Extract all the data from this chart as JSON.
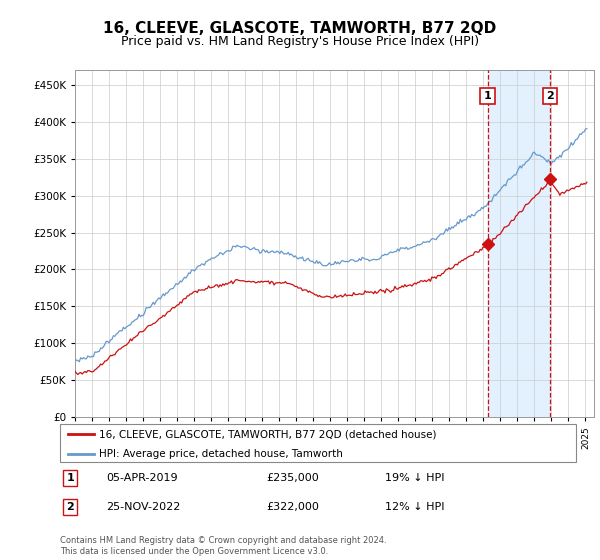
{
  "title": "16, CLEEVE, GLASCOTE, TAMWORTH, B77 2QD",
  "subtitle": "Price paid vs. HM Land Registry's House Price Index (HPI)",
  "legend_line1": "16, CLEEVE, GLASCOTE, TAMWORTH, B77 2QD (detached house)",
  "legend_line2": "HPI: Average price, detached house, Tamworth",
  "annotation1_date": "05-APR-2019",
  "annotation1_price": "£235,000",
  "annotation1_hpi": "19% ↓ HPI",
  "annotation1_year": 2019.25,
  "annotation1_value": 235000,
  "annotation2_date": "25-NOV-2022",
  "annotation2_price": "£322,000",
  "annotation2_hpi": "12% ↓ HPI",
  "annotation2_year": 2022.9,
  "annotation2_value": 322000,
  "footer": "Contains HM Land Registry data © Crown copyright and database right 2024.\nThis data is licensed under the Open Government Licence v3.0.",
  "ylim": [
    0,
    470000
  ],
  "yticks": [
    0,
    50000,
    100000,
    150000,
    200000,
    250000,
    300000,
    350000,
    400000,
    450000
  ],
  "xlim_start": 1995,
  "xlim_end": 2025.5,
  "background_color": "#ffffff",
  "grid_color": "#cccccc",
  "hpi_color": "#6699cc",
  "price_color": "#cc1111",
  "vline_color": "#cc1111",
  "highlight_bg": "#ddeeff",
  "title_fontsize": 11,
  "subtitle_fontsize": 9
}
